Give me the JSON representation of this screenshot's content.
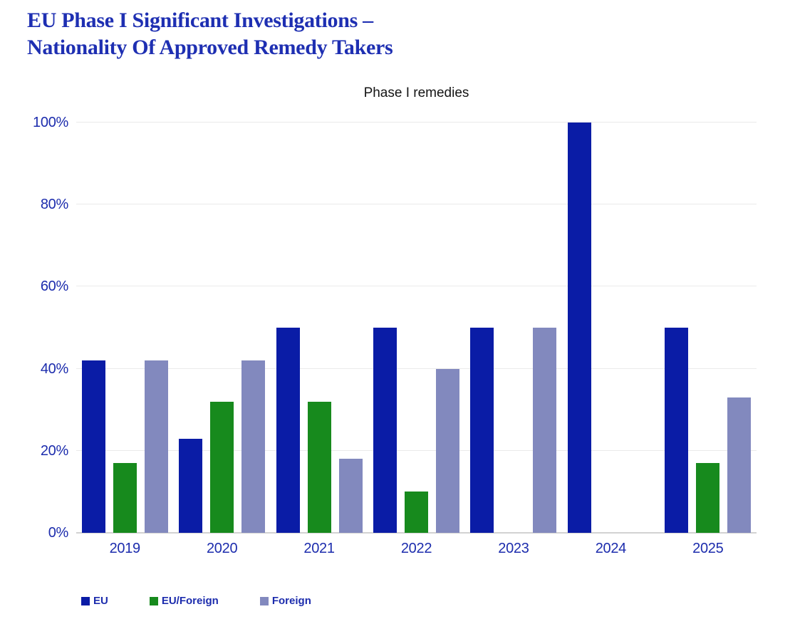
{
  "header": {
    "title_line1": "EU Phase I Significant Investigations –",
    "title_line2": "Nationality Of Approved Remedy Takers"
  },
  "colors": {
    "title_text": "#1e2fb2",
    "axis_text": "#1c2cad",
    "subtitle_text": "#141414",
    "gridline": "#eaeaea",
    "baseline": "#d2d2d2",
    "eu_bar": "#0a1ca6",
    "eu_foreign_bar": "#178a1d",
    "foreign_bar": "#8289be"
  },
  "chart_data": {
    "type": "bar",
    "title": "Phase I remedies",
    "unit": "%",
    "categories": [
      "2019",
      "2020",
      "2021",
      "2022",
      "2023",
      "2024",
      "2025"
    ],
    "series": [
      {
        "name": "EU",
        "color": "#0a1ca6",
        "values": [
          42,
          23,
          50,
          50,
          50,
          100,
          50
        ]
      },
      {
        "name": "EU/Foreign",
        "color": "#178a1d",
        "values": [
          17,
          32,
          32,
          10,
          0,
          0,
          17
        ]
      },
      {
        "name": "Foreign",
        "color": "#8289be",
        "values": [
          42,
          42,
          18,
          40,
          50,
          0,
          33
        ]
      }
    ],
    "xlabel": "",
    "ylabel": "",
    "ylim": [
      0,
      100
    ],
    "y_ticks": [
      "0%",
      "20%",
      "40%",
      "60%",
      "80%",
      "100%"
    ],
    "grid": true,
    "legend_position": "bottom"
  }
}
